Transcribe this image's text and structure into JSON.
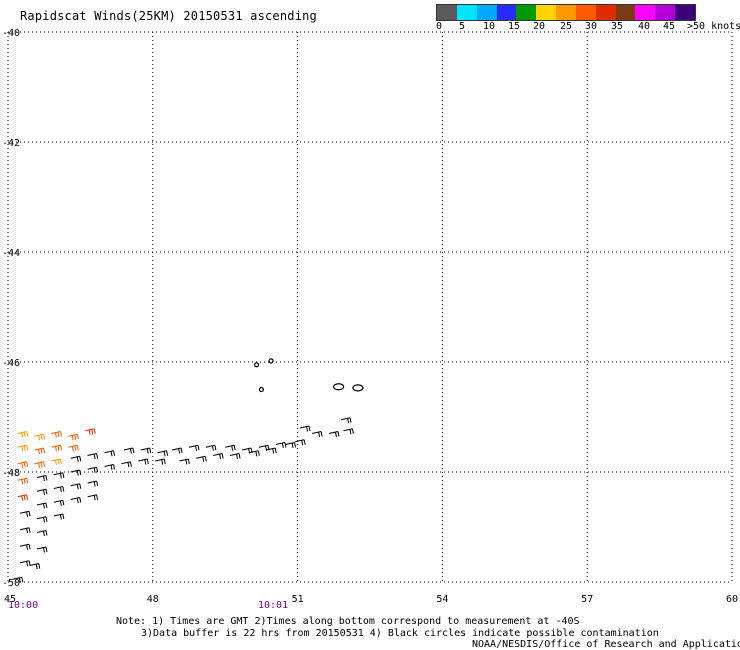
{
  "title": "Rapidscat Winds(25KM) 20150531 ascending",
  "legend": {
    "colors": [
      "#5a5a5a",
      "#00e5ff",
      "#00a8ff",
      "#2a2aff",
      "#009900",
      "#ffd400",
      "#ff9900",
      "#ff5a00",
      "#e02c00",
      "#7a3a14",
      "#ff00ff",
      "#b400d8",
      "#3c0078"
    ],
    "labels": [
      "0",
      "5",
      "10",
      "15",
      "20",
      "25",
      "30",
      "35",
      "40",
      "45",
      ">50 knots"
    ]
  },
  "axes": {
    "lat_labels": [
      "-40",
      "-42",
      "-44",
      "-46",
      "-48",
      "-50"
    ],
    "lon_labels": [
      "45",
      "48",
      "51",
      "54",
      "57",
      "60"
    ],
    "lat_values": [
      -40,
      -42,
      -44,
      -46,
      -48,
      -50
    ],
    "lon_values": [
      45,
      48,
      51,
      54,
      57,
      60
    ],
    "lat_range": [
      -50,
      -40
    ],
    "lon_range": [
      45,
      60
    ]
  },
  "times": [
    "10:00",
    "10:01"
  ],
  "notes": {
    "line1": "Note: 1) Times are GMT 2)Times along bottom correspond to measurement at -40S",
    "line2": "3)Data buffer is 22 hrs from 20150531 4) Black circles indicate possible contamination",
    "line3": "NOAA/NESDIS/Office of Research and Applications"
  },
  "map_data": {
    "wind_barbs": [
      {
        "lon": 45.2,
        "lat": -47.3,
        "knots": 25
      },
      {
        "lon": 45.55,
        "lat": -47.35,
        "knots": 25
      },
      {
        "lon": 45.9,
        "lat": -47.3,
        "knots": 30
      },
      {
        "lon": 46.25,
        "lat": -47.35,
        "knots": 30
      },
      {
        "lon": 46.6,
        "lat": -47.25,
        "knots": 35
      },
      {
        "lon": 45.2,
        "lat": -47.55,
        "knots": 25
      },
      {
        "lon": 45.55,
        "lat": -47.6,
        "knots": 30
      },
      {
        "lon": 45.9,
        "lat": -47.55,
        "knots": 30
      },
      {
        "lon": 46.25,
        "lat": -47.55,
        "knots": 30
      },
      {
        "lon": 45.2,
        "lat": -47.85,
        "knots": 30
      },
      {
        "lon": 45.55,
        "lat": -47.85,
        "knots": 30
      },
      {
        "lon": 45.9,
        "lat": -47.8,
        "knots": 25
      },
      {
        "lon": 45.2,
        "lat": -48.15,
        "knots": 30
      },
      {
        "lon": 45.2,
        "lat": -48.45,
        "knots": 35
      },
      {
        "lon": 46.3,
        "lat": -47.75,
        "knots": 15
      },
      {
        "lon": 46.65,
        "lat": -47.7,
        "knots": 15
      },
      {
        "lon": 47.0,
        "lat": -47.65,
        "knots": 15
      },
      {
        "lon": 47.4,
        "lat": -47.6,
        "knots": 15
      },
      {
        "lon": 47.75,
        "lat": -47.6,
        "knots": 15
      },
      {
        "lon": 48.1,
        "lat": -47.65,
        "knots": 15
      },
      {
        "lon": 48.4,
        "lat": -47.6,
        "knots": 15
      },
      {
        "lon": 48.75,
        "lat": -47.55,
        "knots": 15
      },
      {
        "lon": 49.1,
        "lat": -47.55,
        "knots": 15
      },
      {
        "lon": 49.5,
        "lat": -47.55,
        "knots": 15
      },
      {
        "lon": 49.85,
        "lat": -47.6,
        "knots": 15
      },
      {
        "lon": 50.2,
        "lat": -47.55,
        "knots": 15
      },
      {
        "lon": 50.55,
        "lat": -47.5,
        "knots": 15
      },
      {
        "lon": 50.95,
        "lat": -47.45,
        "knots": 15
      },
      {
        "lon": 51.3,
        "lat": -47.3,
        "knots": 15
      },
      {
        "lon": 51.65,
        "lat": -47.3,
        "knots": 15
      },
      {
        "lon": 51.95,
        "lat": -47.25,
        "knots": 15
      },
      {
        "lon": 48.55,
        "lat": -47.8,
        "knots": 15
      },
      {
        "lon": 48.9,
        "lat": -47.75,
        "knots": 15
      },
      {
        "lon": 49.25,
        "lat": -47.7,
        "knots": 15
      },
      {
        "lon": 49.6,
        "lat": -47.7,
        "knots": 15
      },
      {
        "lon": 50.0,
        "lat": -47.65,
        "knots": 15
      },
      {
        "lon": 50.35,
        "lat": -47.6,
        "knots": 15
      },
      {
        "lon": 50.75,
        "lat": -47.5,
        "knots": 15
      },
      {
        "lon": 51.05,
        "lat": -47.2,
        "knots": 15
      },
      {
        "lon": 51.9,
        "lat": -47.05,
        "knots": 15
      },
      {
        "lon": 45.6,
        "lat": -48.1,
        "knots": 15
      },
      {
        "lon": 45.95,
        "lat": -48.05,
        "knots": 15
      },
      {
        "lon": 46.3,
        "lat": -48.0,
        "knots": 15
      },
      {
        "lon": 46.65,
        "lat": -47.95,
        "knots": 15
      },
      {
        "lon": 47.0,
        "lat": -47.9,
        "knots": 15
      },
      {
        "lon": 47.35,
        "lat": -47.85,
        "knots": 15
      },
      {
        "lon": 47.7,
        "lat": -47.8,
        "knots": 15
      },
      {
        "lon": 48.05,
        "lat": -47.8,
        "knots": 15
      },
      {
        "lon": 45.6,
        "lat": -48.35,
        "knots": 15
      },
      {
        "lon": 45.95,
        "lat": -48.3,
        "knots": 15
      },
      {
        "lon": 46.3,
        "lat": -48.25,
        "knots": 15
      },
      {
        "lon": 46.65,
        "lat": -48.2,
        "knots": 15
      },
      {
        "lon": 45.6,
        "lat": -48.6,
        "knots": 15
      },
      {
        "lon": 45.95,
        "lat": -48.55,
        "knots": 15
      },
      {
        "lon": 46.3,
        "lat": -48.5,
        "knots": 15
      },
      {
        "lon": 46.65,
        "lat": -48.45,
        "knots": 15
      },
      {
        "lon": 45.6,
        "lat": -48.85,
        "knots": 15
      },
      {
        "lon": 45.95,
        "lat": -48.8,
        "knots": 15
      },
      {
        "lon": 45.25,
        "lat": -48.75,
        "knots": 15
      },
      {
        "lon": 45.25,
        "lat": -49.05,
        "knots": 15
      },
      {
        "lon": 45.6,
        "lat": -49.1,
        "knots": 15
      },
      {
        "lon": 45.25,
        "lat": -49.35,
        "knots": 15
      },
      {
        "lon": 45.6,
        "lat": -49.4,
        "knots": 15
      },
      {
        "lon": 45.25,
        "lat": -49.65,
        "knots": 15
      },
      {
        "lon": 45.45,
        "lat": -49.7,
        "knots": 15
      },
      {
        "lon": 45.1,
        "lat": -49.95,
        "knots": 15
      }
    ],
    "contamination_circles": [
      {
        "lon": 50.15,
        "lat": -46.05
      },
      {
        "lon": 50.25,
        "lat": -46.5
      },
      {
        "lon": 50.45,
        "lat": -45.98
      },
      {
        "lon": 51.85,
        "lat": -46.45
      },
      {
        "lon": 52.25,
        "lat": -46.47
      }
    ]
  }
}
